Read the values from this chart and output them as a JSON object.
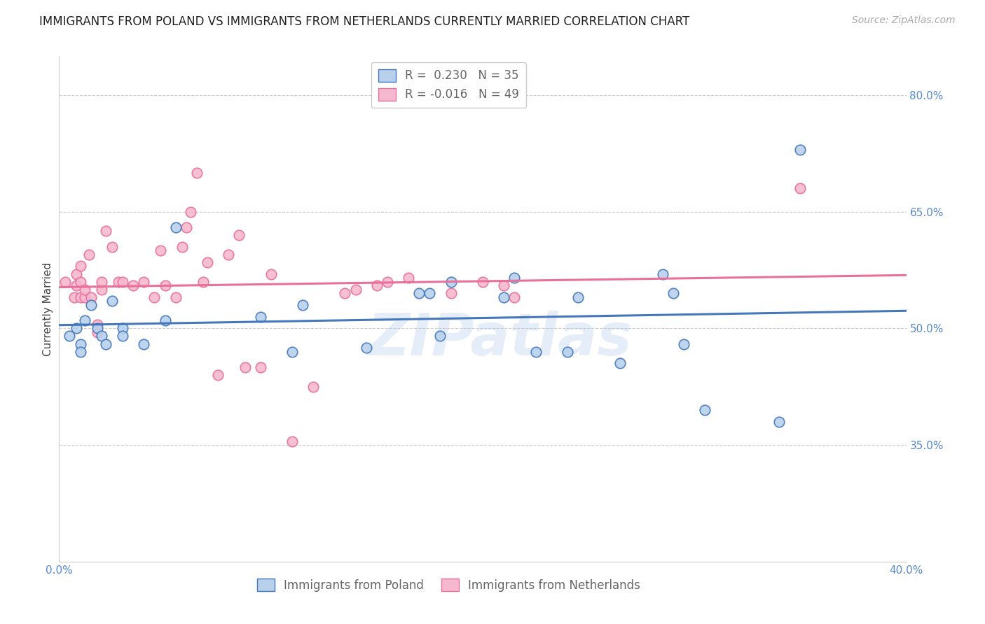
{
  "title": "IMMIGRANTS FROM POLAND VS IMMIGRANTS FROM NETHERLANDS CURRENTLY MARRIED CORRELATION CHART",
  "source": "Source: ZipAtlas.com",
  "ylabel": "Currently Married",
  "watermark": "ZIPatlas",
  "xlim": [
    0.0,
    0.4
  ],
  "ylim": [
    0.2,
    0.85
  ],
  "ytick_vals_right": [
    0.8,
    0.65,
    0.5,
    0.35
  ],
  "R_poland": 0.23,
  "N_poland": 35,
  "R_netherlands": -0.016,
  "N_netherlands": 49,
  "blue_color": "#b8d0ec",
  "pink_color": "#f5b8ce",
  "blue_line_color": "#4477bb",
  "pink_line_color": "#e8709a",
  "poland_x": [
    0.005,
    0.008,
    0.01,
    0.01,
    0.012,
    0.015,
    0.018,
    0.02,
    0.022,
    0.025,
    0.03,
    0.03,
    0.04,
    0.05,
    0.055,
    0.095,
    0.11,
    0.115,
    0.145,
    0.17,
    0.175,
    0.18,
    0.185,
    0.21,
    0.215,
    0.225,
    0.24,
    0.245,
    0.265,
    0.285,
    0.29,
    0.295,
    0.305,
    0.34,
    0.35
  ],
  "poland_y": [
    0.49,
    0.5,
    0.48,
    0.47,
    0.51,
    0.53,
    0.5,
    0.49,
    0.48,
    0.535,
    0.5,
    0.49,
    0.48,
    0.51,
    0.63,
    0.515,
    0.47,
    0.53,
    0.475,
    0.545,
    0.545,
    0.49,
    0.56,
    0.54,
    0.565,
    0.47,
    0.47,
    0.54,
    0.455,
    0.57,
    0.545,
    0.48,
    0.395,
    0.38,
    0.73
  ],
  "netherlands_x": [
    0.003,
    0.007,
    0.008,
    0.008,
    0.01,
    0.01,
    0.01,
    0.012,
    0.012,
    0.014,
    0.015,
    0.018,
    0.018,
    0.02,
    0.02,
    0.022,
    0.025,
    0.028,
    0.03,
    0.035,
    0.04,
    0.045,
    0.048,
    0.05,
    0.055,
    0.058,
    0.06,
    0.062,
    0.065,
    0.068,
    0.07,
    0.075,
    0.08,
    0.085,
    0.088,
    0.095,
    0.1,
    0.11,
    0.12,
    0.135,
    0.14,
    0.15,
    0.155,
    0.165,
    0.185,
    0.2,
    0.21,
    0.215,
    0.35
  ],
  "netherlands_y": [
    0.56,
    0.54,
    0.555,
    0.57,
    0.54,
    0.56,
    0.58,
    0.54,
    0.55,
    0.595,
    0.54,
    0.495,
    0.505,
    0.55,
    0.56,
    0.625,
    0.605,
    0.56,
    0.56,
    0.555,
    0.56,
    0.54,
    0.6,
    0.555,
    0.54,
    0.605,
    0.63,
    0.65,
    0.7,
    0.56,
    0.585,
    0.44,
    0.595,
    0.62,
    0.45,
    0.45,
    0.57,
    0.355,
    0.425,
    0.545,
    0.55,
    0.555,
    0.56,
    0.565,
    0.545,
    0.56,
    0.555,
    0.54,
    0.68
  ],
  "title_fontsize": 12,
  "axis_label_fontsize": 11,
  "tick_fontsize": 11,
  "legend_fontsize": 12,
  "source_fontsize": 10,
  "marker_size": 110,
  "background_color": "#ffffff",
  "grid_color": "#cccccc"
}
